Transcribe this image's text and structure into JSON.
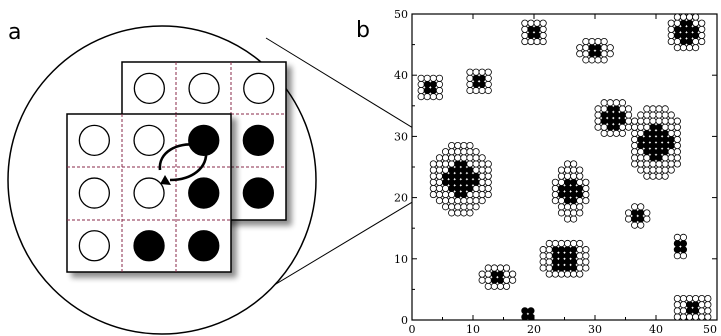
{
  "panels": {
    "a": {
      "letter": "a"
    },
    "b": {
      "letter": "b"
    }
  },
  "grid_schematic": {
    "front_grid": [
      [
        "empty",
        "empty",
        "filled"
      ],
      [
        "empty",
        "empty",
        "filled"
      ],
      [
        "empty",
        "filled",
        "filled"
      ]
    ],
    "back_grid_visible_row": [
      "empty",
      "empty",
      "empty"
    ],
    "back_grid_right_column": [
      "filled",
      "filled"
    ],
    "swap_arrows": "curved-double-arrow"
  },
  "lattice_plot": {
    "x_range": [
      0,
      50
    ],
    "y_range": [
      0,
      50
    ],
    "x_ticks": [
      "0",
      "10",
      "20",
      "30",
      "40",
      "50"
    ],
    "y_ticks": [
      "0",
      "10",
      "20",
      "30",
      "40",
      "50"
    ],
    "clusters": [
      {
        "x": 8,
        "y": 23,
        "rx": 5,
        "ry": 6,
        "core": 2.6
      },
      {
        "x": 33,
        "y": 33,
        "rx": 3.5,
        "ry": 3.5,
        "core": 2
      },
      {
        "x": 40,
        "y": 29,
        "rx": 4.5,
        "ry": 6,
        "core": 2.8
      },
      {
        "x": 26,
        "y": 21,
        "rx": 2.8,
        "ry": 5,
        "core": 1.6
      },
      {
        "x": 25,
        "y": 10,
        "rx": 4.5,
        "ry": 3.5,
        "core": 2.2
      },
      {
        "x": 14,
        "y": 7,
        "rx": 2.8,
        "ry": 2.5,
        "core": 1.5
      },
      {
        "x": 30,
        "y": 44,
        "rx": 2.6,
        "ry": 2.5,
        "core": 1.3
      },
      {
        "x": 11,
        "y": 39,
        "rx": 2.2,
        "ry": 2.2,
        "core": 1.2
      },
      {
        "x": 3,
        "y": 38,
        "rx": 2,
        "ry": 2.5,
        "core": 1.1
      },
      {
        "x": 45,
        "y": 47,
        "rx": 3,
        "ry": 3,
        "core": 2
      },
      {
        "x": 20,
        "y": 47,
        "rx": 2.5,
        "ry": 2,
        "core": 1.2
      },
      {
        "x": 37,
        "y": 17,
        "rx": 1.8,
        "ry": 1.8,
        "core": 1
      },
      {
        "x": 44,
        "y": 12,
        "rx": 1.5,
        "ry": 1.8,
        "core": 0.8
      },
      {
        "x": 46,
        "y": 2,
        "rx": 3.5,
        "ry": 2.5,
        "core": 1.3
      },
      {
        "x": 19,
        "y": 1,
        "rx": 1.5,
        "ry": 1.5,
        "core": 0.8
      }
    ]
  }
}
